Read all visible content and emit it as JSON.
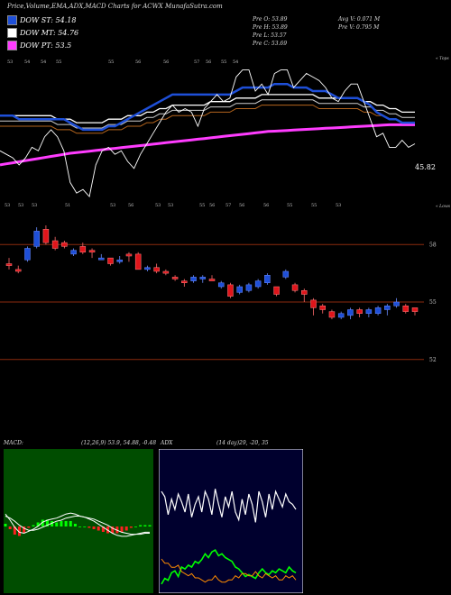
{
  "title": "Price,Volume,EMA,ADX,MACD Charts for ACWX MunafaSutra.com",
  "legend": [
    {
      "label": "DOW ST: 54.18",
      "color": "#1e4fd8"
    },
    {
      "label": "DOW MT: 54.76",
      "color": "#ffffff"
    },
    {
      "label": "DOW PT: 53.5",
      "color": "#ff3cff"
    }
  ],
  "stats": {
    "prev_open": "Pre O: 53.89",
    "prev_high": "Pre H: 53.89",
    "prev_low": "Pre L: 53.57",
    "prev_close": "Pre C: 53.69",
    "avg_volume": "Avg V: 0.071 M",
    "prev_volume": "Pre V: 0.795 M"
  },
  "colors": {
    "ema_short": "#1e4fd8",
    "ema_mid": "#ffffff",
    "ema_long": "#ff3cff",
    "up_candle": "#1e4fd8",
    "down_candle": "#e0151b",
    "grid": "#8b2a0e",
    "macd_bg": "#004d00",
    "adx_bg": "#00002e"
  },
  "chart_data": [
    {
      "type": "line",
      "name": "price-ema-panel",
      "top_label": "« Tops",
      "bottom_label": "« Lows",
      "last_value_label": "45.82",
      "top_ticks": [
        "53",
        "54",
        "54",
        "55",
        "55",
        "56",
        "56",
        "57",
        "56",
        "55",
        "54"
      ],
      "bottom_ticks": [
        "53",
        "53",
        "53",
        "51",
        "53",
        "56",
        "53",
        "53",
        "55",
        "56",
        "57",
        "56",
        "56",
        "55",
        "55",
        "53"
      ],
      "price": [
        33,
        32,
        31,
        29,
        31,
        34,
        33,
        37,
        39,
        37,
        33,
        24,
        21,
        22,
        20,
        29,
        33,
        34,
        32,
        33,
        30,
        28,
        32,
        35,
        38,
        41,
        44,
        46,
        44,
        45,
        44,
        40,
        45,
        47,
        49,
        47,
        48,
        54,
        56,
        56,
        50,
        52,
        49,
        55,
        56,
        56,
        51,
        53,
        55,
        54,
        53,
        51,
        48,
        47,
        50,
        52,
        52,
        47,
        42,
        37,
        38,
        34,
        34,
        36,
        34,
        35
      ],
      "ema_short": [
        43,
        43,
        43,
        42,
        42,
        42,
        42,
        42,
        42,
        42,
        42,
        41,
        40,
        39,
        39,
        39,
        39,
        40,
        40,
        41,
        42,
        43,
        44,
        45,
        46,
        47,
        48,
        49,
        49,
        49,
        49,
        49,
        49,
        49,
        49,
        49,
        49,
        50,
        51,
        51,
        51,
        51,
        51,
        52,
        52,
        52,
        51,
        51,
        51,
        50,
        50,
        50,
        49,
        48,
        48,
        48,
        48,
        47,
        46,
        44,
        43,
        42,
        42,
        41,
        41,
        41
      ],
      "ema_mid": [
        43,
        43,
        43,
        43,
        43,
        43,
        43,
        43,
        43,
        42,
        42,
        42,
        41,
        41,
        41,
        41,
        41,
        42,
        42,
        42,
        43,
        43,
        43,
        44,
        44,
        45,
        45,
        46,
        46,
        46,
        46,
        46,
        46,
        47,
        47,
        47,
        47,
        48,
        48,
        48,
        48,
        49,
        49,
        49,
        49,
        49,
        49,
        49,
        49,
        49,
        48,
        48,
        48,
        48,
        48,
        48,
        48,
        47,
        47,
        46,
        46,
        45,
        45,
        44,
        44,
        44
      ],
      "ema_long": [
        29,
        29.3,
        29.6,
        29.9,
        30.2,
        30.5,
        30.8,
        31.1,
        31.4,
        31.7,
        32,
        32.3,
        32.5,
        32.7,
        32.9,
        33.1,
        33.3,
        33.5,
        33.7,
        33.9,
        34.1,
        34.3,
        34.5,
        34.7,
        34.9,
        35.1,
        35.3,
        35.5,
        35.7,
        35.9,
        36.1,
        36.3,
        36.5,
        36.7,
        36.9,
        37.1,
        37.3,
        37.5,
        37.7,
        37.9,
        38.1,
        38.3,
        38.5,
        38.6,
        38.7,
        38.8,
        38.9,
        39,
        39.1,
        39.2,
        39.3,
        39.4,
        39.5,
        39.6,
        39.7,
        39.8,
        39.9,
        40,
        40.1,
        40.2,
        40.3,
        40.4,
        40.4,
        40.4,
        40.4,
        40.4
      ]
    },
    {
      "type": "bar",
      "name": "candlestick-panel",
      "ylabels": [
        "58",
        "55",
        "52"
      ],
      "ylim": [
        51,
        59
      ],
      "candles": [
        {
          "o": 56.2,
          "c": 56.1,
          "h": 56.5,
          "l": 55.9
        },
        {
          "o": 55.9,
          "c": 55.8,
          "h": 56.1,
          "l": 55.7
        },
        {
          "o": 56.4,
          "c": 57.0,
          "h": 57.1,
          "l": 56.3
        },
        {
          "o": 57.1,
          "c": 57.9,
          "h": 58.1,
          "l": 57.0
        },
        {
          "o": 58.0,
          "c": 57.3,
          "h": 58.2,
          "l": 57.2
        },
        {
          "o": 57.4,
          "c": 57.0,
          "h": 57.6,
          "l": 56.9
        },
        {
          "o": 57.3,
          "c": 57.1,
          "h": 57.4,
          "l": 57.0
        },
        {
          "o": 56.7,
          "c": 56.9,
          "h": 57.0,
          "l": 56.6
        },
        {
          "o": 57.1,
          "c": 56.8,
          "h": 57.3,
          "l": 56.7
        },
        {
          "o": 56.9,
          "c": 56.8,
          "h": 57.0,
          "l": 56.5
        },
        {
          "o": 56.4,
          "c": 56.5,
          "h": 56.7,
          "l": 56.4
        },
        {
          "o": 56.5,
          "c": 56.2,
          "h": 56.5,
          "l": 56.1
        },
        {
          "o": 56.3,
          "c": 56.4,
          "h": 56.6,
          "l": 56.2
        },
        {
          "o": 56.7,
          "c": 56.6,
          "h": 56.8,
          "l": 56.3
        },
        {
          "o": 56.7,
          "c": 55.9,
          "h": 56.8,
          "l": 55.9
        },
        {
          "o": 55.9,
          "c": 56.0,
          "h": 56.1,
          "l": 55.8
        },
        {
          "o": 56.0,
          "c": 55.8,
          "h": 56.2,
          "l": 55.7
        },
        {
          "o": 55.8,
          "c": 55.7,
          "h": 55.9,
          "l": 55.6
        },
        {
          "o": 55.5,
          "c": 55.4,
          "h": 55.6,
          "l": 55.3
        },
        {
          "o": 55.3,
          "c": 55.2,
          "h": 55.4,
          "l": 55.0
        },
        {
          "o": 55.3,
          "c": 55.5,
          "h": 55.6,
          "l": 55.2
        },
        {
          "o": 55.4,
          "c": 55.5,
          "h": 55.6,
          "l": 55.2
        },
        {
          "o": 55.4,
          "c": 55.3,
          "h": 55.6,
          "l": 55.3
        },
        {
          "o": 55.0,
          "c": 55.2,
          "h": 55.3,
          "l": 54.9
        },
        {
          "o": 55.1,
          "c": 54.5,
          "h": 55.2,
          "l": 54.4
        },
        {
          "o": 54.7,
          "c": 55.0,
          "h": 55.1,
          "l": 54.6
        },
        {
          "o": 54.8,
          "c": 55.1,
          "h": 55.2,
          "l": 54.7
        },
        {
          "o": 55.0,
          "c": 55.3,
          "h": 55.4,
          "l": 54.9
        },
        {
          "o": 55.2,
          "c": 55.6,
          "h": 55.7,
          "l": 55.1
        },
        {
          "o": 55.0,
          "c": 54.6,
          "h": 55.0,
          "l": 54.5
        },
        {
          "o": 55.5,
          "c": 55.8,
          "h": 55.9,
          "l": 55.4
        },
        {
          "o": 55.1,
          "c": 54.8,
          "h": 55.2,
          "l": 54.7
        },
        {
          "o": 54.8,
          "c": 54.6,
          "h": 54.9,
          "l": 54.2
        },
        {
          "o": 54.3,
          "c": 53.9,
          "h": 54.4,
          "l": 53.5
        },
        {
          "o": 54.0,
          "c": 53.8,
          "h": 54.1,
          "l": 53.6
        },
        {
          "o": 53.7,
          "c": 53.4,
          "h": 53.8,
          "l": 53.3
        },
        {
          "o": 53.4,
          "c": 53.6,
          "h": 53.7,
          "l": 53.3
        },
        {
          "o": 53.5,
          "c": 53.8,
          "h": 53.9,
          "l": 53.3
        },
        {
          "o": 53.8,
          "c": 53.6,
          "h": 53.9,
          "l": 53.4
        },
        {
          "o": 53.6,
          "c": 53.8,
          "h": 53.9,
          "l": 53.4
        },
        {
          "o": 53.6,
          "c": 53.9,
          "h": 54.0,
          "l": 53.5
        },
        {
          "o": 53.8,
          "c": 54.0,
          "h": 54.1,
          "l": 53.5
        },
        {
          "o": 54.0,
          "c": 54.2,
          "h": 54.4,
          "l": 53.9
        },
        {
          "o": 54.0,
          "c": 53.7,
          "h": 54.1,
          "l": 53.6
        },
        {
          "o": 53.9,
          "c": 53.7,
          "h": 53.9,
          "l": 53.5
        }
      ]
    },
    {
      "type": "line",
      "name": "macd-panel",
      "title": "MACD:",
      "params": "(12,26,9) 53.9, 54.88, -0.48",
      "macd": [
        48,
        42,
        35,
        30,
        29,
        31,
        33,
        36,
        40,
        42,
        43,
        44,
        46,
        48,
        49,
        48,
        46,
        45,
        43,
        41,
        38,
        35,
        32,
        29,
        27,
        26,
        26,
        27,
        28,
        29,
        30,
        30
      ],
      "signal": [
        46,
        44,
        41,
        37,
        34,
        32,
        32,
        33,
        35,
        37,
        39,
        41,
        42,
        44,
        45,
        46,
        46,
        45,
        44,
        43,
        41,
        39,
        37,
        34,
        32,
        30,
        29,
        28,
        28,
        28,
        29,
        29
      ],
      "histogram": [
        2,
        -2,
        -6,
        -7,
        -5,
        -1,
        1,
        3,
        5,
        5,
        4,
        3,
        4,
        4,
        4,
        2,
        0,
        0,
        -1,
        -2,
        -3,
        -4,
        -5,
        -5,
        -5,
        -4,
        -3,
        -1,
        0,
        1,
        1,
        1
      ]
    },
    {
      "type": "line",
      "name": "adx-panel",
      "title": "ADX",
      "params": "(14 day)29, -20, 35",
      "di_plus": [
        12,
        18,
        16,
        24,
        26,
        20,
        30,
        28,
        32,
        30,
        36,
        34,
        38,
        44,
        40,
        46,
        48,
        42,
        44,
        40,
        38,
        36,
        30,
        28,
        24,
        20,
        22,
        20,
        18,
        24,
        28,
        24,
        22,
        26,
        24,
        28,
        26,
        24,
        30,
        26,
        24
      ],
      "di_minus": [
        34,
        30,
        30,
        26,
        26,
        28,
        22,
        20,
        18,
        20,
        16,
        16,
        14,
        12,
        14,
        14,
        18,
        14,
        12,
        12,
        14,
        14,
        18,
        16,
        20,
        20,
        18,
        18,
        22,
        18,
        16,
        20,
        18,
        16,
        18,
        14,
        14,
        18,
        16,
        18,
        14
      ],
      "adx": [
        80,
        76,
        62,
        74,
        66,
        78,
        72,
        64,
        78,
        60,
        70,
        76,
        64,
        80,
        74,
        62,
        82,
        70,
        60,
        76,
        68,
        80,
        64,
        58,
        74,
        62,
        78,
        70,
        56,
        80,
        72,
        60,
        78,
        66,
        80,
        74,
        68,
        78,
        72,
        70,
        66
      ]
    }
  ]
}
